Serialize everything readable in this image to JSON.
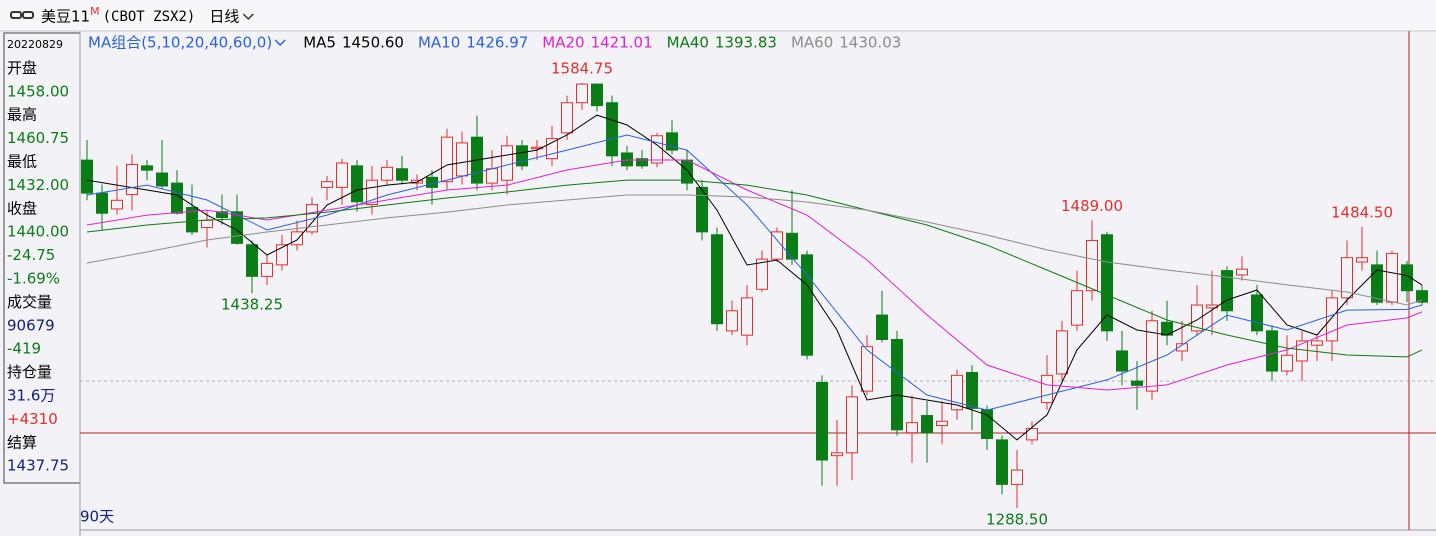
{
  "header": {
    "symbol": "美豆11",
    "mark": "M",
    "code": "(CBOT ZSX2)",
    "period": "日线"
  },
  "chart_data": {
    "type": "candlestick",
    "ma_title": "MA组合(5,10,20,40,60,0)",
    "range_label": "90天",
    "up_color": "#e0302c",
    "down_color": "#0b7d16",
    "ylim": [
      1273.2,
      1621.7
    ],
    "candles": [
      {
        "open": 1531,
        "high": 1545,
        "low": 1503,
        "close": 1508
      },
      {
        "open": 1508,
        "high": 1514,
        "low": 1482,
        "close": 1494
      },
      {
        "open": 1497,
        "high": 1527,
        "low": 1493,
        "close": 1503
      },
      {
        "open": 1507,
        "high": 1535,
        "low": 1496,
        "close": 1528
      },
      {
        "open": 1527,
        "high": 1531,
        "low": 1517,
        "close": 1524
      },
      {
        "open": 1522,
        "high": 1545,
        "low": 1511,
        "close": 1513
      },
      {
        "open": 1515,
        "high": 1524,
        "low": 1493,
        "close": 1494
      },
      {
        "open": 1498,
        "high": 1514,
        "low": 1479,
        "close": 1481
      },
      {
        "open": 1484,
        "high": 1496,
        "low": 1470,
        "close": 1489
      },
      {
        "open": 1495,
        "high": 1507,
        "low": 1486,
        "close": 1491
      },
      {
        "open": 1495,
        "high": 1507,
        "low": 1472,
        "close": 1473
      },
      {
        "open": 1472,
        "high": 1475,
        "low": 1438.25,
        "close": 1450,
        "low_label": "1438.25"
      },
      {
        "open": 1450,
        "high": 1465,
        "low": 1444,
        "close": 1459
      },
      {
        "open": 1458,
        "high": 1479,
        "low": 1454,
        "close": 1472
      },
      {
        "open": 1472,
        "high": 1489,
        "low": 1468,
        "close": 1481
      },
      {
        "open": 1481,
        "high": 1505,
        "low": 1479,
        "close": 1500
      },
      {
        "open": 1512,
        "high": 1520,
        "low": 1503,
        "close": 1516
      },
      {
        "open": 1512,
        "high": 1532,
        "low": 1500,
        "close": 1529
      },
      {
        "open": 1527,
        "high": 1531,
        "low": 1495,
        "close": 1502
      },
      {
        "open": 1500,
        "high": 1527,
        "low": 1493,
        "close": 1517
      },
      {
        "open": 1517,
        "high": 1531,
        "low": 1514,
        "close": 1526
      },
      {
        "open": 1525,
        "high": 1534,
        "low": 1514,
        "close": 1517
      },
      {
        "open": 1515,
        "high": 1521,
        "low": 1510,
        "close": 1517
      },
      {
        "open": 1519,
        "high": 1524,
        "low": 1500,
        "close": 1512
      },
      {
        "open": 1516,
        "high": 1553,
        "low": 1510,
        "close": 1547
      },
      {
        "open": 1520,
        "high": 1551,
        "low": 1514,
        "close": 1543
      },
      {
        "open": 1547,
        "high": 1562,
        "low": 1510,
        "close": 1515
      },
      {
        "open": 1515,
        "high": 1538,
        "low": 1510,
        "close": 1525
      },
      {
        "open": 1517,
        "high": 1548,
        "low": 1507,
        "close": 1541
      },
      {
        "open": 1541,
        "high": 1545,
        "low": 1524,
        "close": 1527
      },
      {
        "open": 1539,
        "high": 1545,
        "low": 1531,
        "close": 1540
      },
      {
        "open": 1532,
        "high": 1555,
        "low": 1527,
        "close": 1546
      },
      {
        "open": 1550,
        "high": 1576,
        "low": 1545,
        "close": 1571
      },
      {
        "open": 1571,
        "high": 1584.75,
        "low": 1566,
        "close": 1584,
        "high_label": "1584.75"
      },
      {
        "open": 1584,
        "high": 1584.5,
        "low": 1565,
        "close": 1569
      },
      {
        "open": 1571,
        "high": 1576,
        "low": 1527,
        "close": 1534
      },
      {
        "open": 1536,
        "high": 1541,
        "low": 1524,
        "close": 1527
      },
      {
        "open": 1532,
        "high": 1538,
        "low": 1525,
        "close": 1527
      },
      {
        "open": 1529,
        "high": 1550,
        "low": 1526,
        "close": 1548
      },
      {
        "open": 1550,
        "high": 1559,
        "low": 1535,
        "close": 1538
      },
      {
        "open": 1531,
        "high": 1538,
        "low": 1510,
        "close": 1515
      },
      {
        "open": 1512,
        "high": 1517,
        "low": 1475,
        "close": 1481
      },
      {
        "open": 1479,
        "high": 1484,
        "low": 1412,
        "close": 1417
      },
      {
        "open": 1412,
        "high": 1433,
        "low": 1409,
        "close": 1426
      },
      {
        "open": 1409,
        "high": 1444,
        "low": 1402,
        "close": 1435
      },
      {
        "open": 1441,
        "high": 1468,
        "low": 1439,
        "close": 1462
      },
      {
        "open": 1462,
        "high": 1484,
        "low": 1460,
        "close": 1481
      },
      {
        "open": 1480,
        "high": 1510,
        "low": 1458,
        "close": 1462
      },
      {
        "open": 1465,
        "high": 1468,
        "low": 1392,
        "close": 1395
      },
      {
        "open": 1376,
        "high": 1381,
        "low": 1304,
        "close": 1322
      },
      {
        "open": 1325,
        "high": 1350,
        "low": 1304,
        "close": 1327
      },
      {
        "open": 1327,
        "high": 1374,
        "low": 1308,
        "close": 1366
      },
      {
        "open": 1370,
        "high": 1409,
        "low": 1367,
        "close": 1401
      },
      {
        "open": 1423,
        "high": 1440,
        "low": 1404,
        "close": 1406
      },
      {
        "open": 1406,
        "high": 1412,
        "low": 1339,
        "close": 1343
      },
      {
        "open": 1341,
        "high": 1367,
        "low": 1320,
        "close": 1348
      },
      {
        "open": 1353,
        "high": 1363,
        "low": 1320,
        "close": 1341
      },
      {
        "open": 1346,
        "high": 1363,
        "low": 1333,
        "close": 1349
      },
      {
        "open": 1357,
        "high": 1385,
        "low": 1350,
        "close": 1381
      },
      {
        "open": 1383,
        "high": 1388,
        "low": 1343,
        "close": 1358
      },
      {
        "open": 1357,
        "high": 1360,
        "low": 1329,
        "close": 1337
      },
      {
        "open": 1336,
        "high": 1339,
        "low": 1298,
        "close": 1305
      },
      {
        "open": 1305,
        "high": 1329,
        "low": 1288.5,
        "close": 1315,
        "low_label": "1288.50"
      },
      {
        "open": 1336,
        "high": 1349,
        "low": 1333,
        "close": 1344
      },
      {
        "open": 1362,
        "high": 1395,
        "low": 1357,
        "close": 1381
      },
      {
        "open": 1382,
        "high": 1419,
        "low": 1377,
        "close": 1412
      },
      {
        "open": 1416,
        "high": 1454,
        "low": 1412,
        "close": 1440
      },
      {
        "open": 1440,
        "high": 1489,
        "low": 1433,
        "close": 1475,
        "high_label": "1489.00"
      },
      {
        "open": 1479,
        "high": 1481,
        "low": 1405,
        "close": 1412
      },
      {
        "open": 1398,
        "high": 1412,
        "low": 1374,
        "close": 1384
      },
      {
        "open": 1377,
        "high": 1391,
        "low": 1357,
        "close": 1374
      },
      {
        "open": 1370,
        "high": 1426,
        "low": 1364,
        "close": 1419
      },
      {
        "open": 1418,
        "high": 1433,
        "low": 1402,
        "close": 1409
      },
      {
        "open": 1398,
        "high": 1419,
        "low": 1391,
        "close": 1403
      },
      {
        "open": 1412,
        "high": 1444,
        "low": 1409,
        "close": 1430
      },
      {
        "open": 1428,
        "high": 1454,
        "low": 1409,
        "close": 1430
      },
      {
        "open": 1454,
        "high": 1457,
        "low": 1419,
        "close": 1426
      },
      {
        "open": 1451,
        "high": 1464,
        "low": 1447,
        "close": 1455
      },
      {
        "open": 1437,
        "high": 1444,
        "low": 1409,
        "close": 1412
      },
      {
        "open": 1412,
        "high": 1416,
        "low": 1377,
        "close": 1384
      },
      {
        "open": 1384,
        "high": 1409,
        "low": 1381,
        "close": 1395
      },
      {
        "open": 1391,
        "high": 1412,
        "low": 1377,
        "close": 1405
      },
      {
        "open": 1402,
        "high": 1409,
        "low": 1391,
        "close": 1405
      },
      {
        "open": 1405,
        "high": 1440,
        "low": 1391,
        "close": 1435
      },
      {
        "open": 1435,
        "high": 1475,
        "low": 1430,
        "close": 1463
      },
      {
        "open": 1460,
        "high": 1484.5,
        "low": 1454,
        "close": 1463,
        "high_label": "1484.50"
      },
      {
        "open": 1458,
        "high": 1468,
        "low": 1430,
        "close": 1432
      },
      {
        "open": 1432,
        "high": 1468,
        "low": 1430,
        "close": 1466
      },
      {
        "open": 1458,
        "high": 1460.75,
        "low": 1432,
        "close": 1440
      },
      {
        "open": 1440,
        "high": 1444,
        "low": 1430,
        "close": 1432
      }
    ],
    "series": [
      {
        "name": "MA5",
        "color": "#000000",
        "legend_value": {
          "value": 1450.6,
          "label": "1450.60"
        },
        "x": [
          0,
          2,
          4,
          6,
          8,
          10,
          12,
          14,
          16,
          18,
          20,
          22,
          24,
          26,
          28,
          30,
          32,
          34,
          36,
          38,
          40,
          42,
          44,
          46,
          48,
          50,
          52,
          54,
          56,
          58,
          60,
          62,
          64,
          66,
          68,
          70,
          72,
          74,
          76,
          78,
          80,
          82,
          84,
          86,
          88,
          89
        ],
        "values": [
          1517.1,
          1513.6,
          1510.2,
          1506.7,
          1492.7,
          1482.3,
          1464.9,
          1475.3,
          1499.7,
          1510.2,
          1513.6,
          1515.7,
          1527.6,
          1531.1,
          1534.6,
          1538.0,
          1548.5,
          1562.4,
          1555.5,
          1541.6,
          1524.1,
          1496.2,
          1457.9,
          1461.4,
          1444.0,
          1412.6,
          1363.8,
          1367.3,
          1363.8,
          1360.3,
          1353.4,
          1336.0,
          1353.4,
          1398.7,
          1423.1,
          1412.6,
          1409.1,
          1419.6,
          1433.5,
          1440.5,
          1416.1,
          1409.1,
          1433.5,
          1454.4,
          1450.6,
          1444.0
        ]
      },
      {
        "name": "MA10",
        "color": "#2a62d8",
        "legend_value": {
          "value": 1426.97,
          "label": "1426.97"
        },
        "x": [
          0,
          4,
          8,
          12,
          16,
          20,
          24,
          28,
          32,
          36,
          40,
          44,
          48,
          52,
          56,
          60,
          64,
          68,
          72,
          76,
          80,
          84,
          88,
          89
        ],
        "values": [
          1506.7,
          1513.6,
          1503.2,
          1482.3,
          1492.7,
          1506.7,
          1517.1,
          1527.6,
          1538.0,
          1548.5,
          1538.0,
          1499.7,
          1450.9,
          1398.7,
          1367.3,
          1356.8,
          1367.3,
          1377.8,
          1395.2,
          1422.9,
          1412.6,
          1426.5,
          1426.97,
          1430.0
        ]
      },
      {
        "name": "MA20",
        "color": "#e020d0",
        "legend_value": {
          "value": 1421.01,
          "label": "1421.01"
        },
        "x": [
          0,
          4,
          8,
          12,
          16,
          20,
          24,
          28,
          32,
          36,
          40,
          44,
          48,
          52,
          56,
          60,
          64,
          68,
          72,
          76,
          80,
          84,
          88,
          89
        ],
        "values": [
          1485.8,
          1492.7,
          1496.2,
          1489.3,
          1496.2,
          1503.2,
          1510.2,
          1513.6,
          1524.1,
          1531.1,
          1531.1,
          1510.2,
          1492.7,
          1461.4,
          1423.1,
          1388.2,
          1374.3,
          1370.8,
          1374.3,
          1388.2,
          1398.7,
          1416.1,
          1421.01,
          1425.2
        ]
      },
      {
        "name": "MA40",
        "color": "#0f7a12",
        "legend_value": {
          "value": 1393.83,
          "label": "1393.83"
        },
        "x": [
          0,
          4,
          8,
          12,
          16,
          20,
          24,
          28,
          32,
          36,
          40,
          44,
          48,
          52,
          56,
          60,
          64,
          68,
          72,
          76,
          80,
          84,
          88,
          89
        ],
        "values": [
          1480.9,
          1485.8,
          1489.3,
          1490.7,
          1494.8,
          1499.7,
          1504.6,
          1508.8,
          1513.6,
          1517.1,
          1517.1,
          1513.6,
          1506.7,
          1496.2,
          1485.8,
          1471.8,
          1454.4,
          1437.0,
          1419.6,
          1409.1,
          1400.0,
          1395.2,
          1393.83,
          1398.7
        ]
      },
      {
        "name": "MA60",
        "color": "#8c8c8c",
        "legend_value": {
          "value": 1430.03,
          "label": "1430.03"
        },
        "x": [
          0,
          4,
          8,
          12,
          16,
          20,
          24,
          28,
          32,
          36,
          40,
          44,
          48,
          52,
          56,
          60,
          64,
          68,
          72,
          76,
          80,
          84,
          88,
          89
        ],
        "values": [
          1459.3,
          1467.0,
          1475.3,
          1480.9,
          1485.8,
          1490.7,
          1494.8,
          1499.7,
          1503.2,
          1506.7,
          1506.7,
          1505.3,
          1501.8,
          1496.2,
          1487.9,
          1478.8,
          1468.4,
          1460.0,
          1454.4,
          1449.5,
          1444.0,
          1439.1,
          1430.03,
          1433.5
        ]
      }
    ]
  },
  "info_panel": {
    "lines": [
      {
        "text": "20220829",
        "color": "#000000"
      },
      {
        "text": "开盘",
        "color": "#000000"
      },
      {
        "text": "1458.00",
        "color": "#0b7d16"
      },
      {
        "text": "最高",
        "color": "#000000"
      },
      {
        "text": "1460.75",
        "color": "#0b7d16"
      },
      {
        "text": "最低",
        "color": "#000000"
      },
      {
        "text": "1432.00",
        "color": "#0b7d16"
      },
      {
        "text": "收盘",
        "color": "#000000"
      },
      {
        "text": "1440.00",
        "color": "#0b7d16"
      },
      {
        "text": "-24.75",
        "color": "#0b7d16"
      },
      {
        "text": "-1.69%",
        "color": "#0b7d16"
      },
      {
        "text": "成交量",
        "color": "#000000"
      },
      {
        "text": "90679",
        "color": "#10207a"
      },
      {
        "text": "-419",
        "color": "#0b7d16"
      },
      {
        "text": "持仓量",
        "color": "#000000"
      },
      {
        "text": "31.6万",
        "color": "#10207a"
      },
      {
        "text": "+4310",
        "color": "#e0302c"
      },
      {
        "text": "结算",
        "color": "#000000"
      },
      {
        "text": "1437.75",
        "color": "#10207a"
      }
    ]
  }
}
